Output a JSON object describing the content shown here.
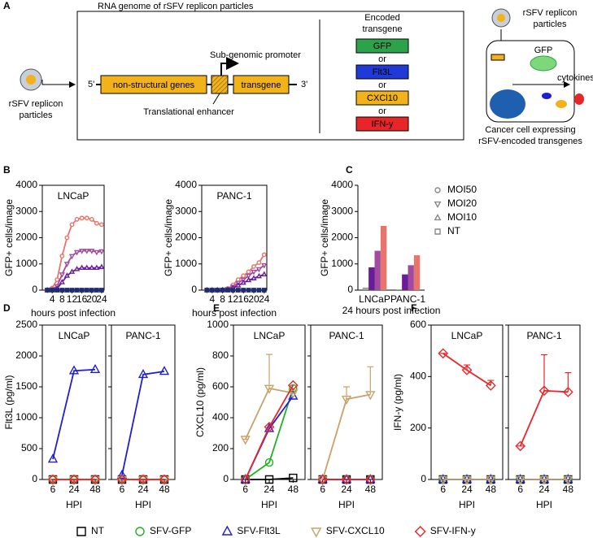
{
  "panel_labels": [
    "A",
    "B",
    "C",
    "D",
    "E",
    "F"
  ],
  "diagram": {
    "title": "RNA genome of rSFV replicon particles",
    "left_particles": [
      "rSFV replicon",
      "particles"
    ],
    "five_prime": "5'",
    "nonstructural": "non-structural genes",
    "promoter": "Sub-genomic promoter",
    "transgene": "transgene",
    "three_prime": "3'",
    "enhancer": "Translational enhancer",
    "encoded": [
      "Encoded",
      "transgene"
    ],
    "options": [
      {
        "label": "GFP",
        "color": "#2ca34a"
      },
      {
        "label": "Flt3L",
        "color": "#1f3ad6"
      },
      {
        "label": "CXCl10",
        "color": "#f2b21b"
      },
      {
        "label": "IFN-y",
        "color": "#e8262a"
      }
    ],
    "or": "or",
    "right_particles": [
      "rSFV replicon",
      "particles"
    ],
    "gfp": "GFP",
    "cytokines": "cytokines",
    "cell": [
      "Cancer cell expressing",
      "rSFV-encoded transgenes"
    ]
  },
  "shared_legend": [
    {
      "name": "NT",
      "color": "#000000",
      "marker": "square"
    },
    {
      "name": "SFV-GFP",
      "color": "#22b022",
      "marker": "circle"
    },
    {
      "name": "SFV-Flt3L",
      "color": "#1f1fd1",
      "marker": "triangle-up"
    },
    {
      "name": "SFV-CXCL10",
      "color": "#c8a26a",
      "marker": "triangle-down"
    },
    {
      "name": "SFV-IFN-y",
      "color": "#e8262a",
      "marker": "diamond"
    }
  ],
  "chart_data": [
    {
      "type": "line",
      "title": "LNCaP",
      "ylabel": "GFP+ cells/image",
      "xlabel": "hours post infection",
      "x": [
        2,
        4,
        6,
        8,
        10,
        12,
        14,
        16,
        18,
        20,
        22,
        24
      ],
      "xlim": [
        0,
        25
      ],
      "xticks": [
        4,
        8,
        12,
        16,
        20,
        24
      ],
      "ylim": [
        0,
        4000
      ],
      "yticks": [
        0,
        1000,
        2000,
        3000,
        4000
      ],
      "series": [
        {
          "color": "#e8746c",
          "marker": "circle",
          "values": [
            0,
            80,
            400,
            1300,
            2000,
            2500,
            2700,
            2750,
            2750,
            2700,
            2550,
            2500
          ]
        },
        {
          "color": "#a04b9e",
          "marker": "triangle-down",
          "values": [
            0,
            30,
            150,
            600,
            1000,
            1300,
            1450,
            1500,
            1500,
            1500,
            1450,
            1480
          ]
        },
        {
          "color": "#6a1b9a",
          "marker": "triangle-up",
          "values": [
            0,
            10,
            60,
            300,
            550,
            700,
            800,
            850,
            850,
            850,
            850,
            880
          ]
        },
        {
          "color": "#1f2d6e",
          "marker": "square",
          "values": [
            0,
            0,
            0,
            0,
            0,
            0,
            0,
            0,
            0,
            0,
            0,
            0
          ]
        }
      ]
    },
    {
      "type": "line",
      "title": "PANC-1",
      "ylabel": "GFP+ cells/image",
      "xlabel": "hours post infection",
      "x": [
        2,
        4,
        6,
        8,
        10,
        12,
        14,
        16,
        18,
        20,
        22,
        24
      ],
      "xlim": [
        0,
        25
      ],
      "xticks": [
        4,
        8,
        12,
        16,
        20,
        24
      ],
      "ylim": [
        0,
        4000
      ],
      "yticks": [
        0,
        1000,
        2000,
        3000,
        4000
      ],
      "series": [
        {
          "color": "#e8746c",
          "marker": "circle",
          "values": [
            0,
            0,
            0,
            20,
            60,
            200,
            400,
            550,
            700,
            900,
            1050,
            1350
          ]
        },
        {
          "color": "#a04b9e",
          "marker": "triangle-down",
          "values": [
            0,
            0,
            0,
            10,
            40,
            130,
            280,
            400,
            550,
            700,
            800,
            950
          ]
        },
        {
          "color": "#6a1b9a",
          "marker": "triangle-up",
          "values": [
            0,
            0,
            0,
            5,
            20,
            80,
            180,
            280,
            380,
            450,
            530,
            600
          ]
        },
        {
          "color": "#1f2d6e",
          "marker": "square",
          "values": [
            0,
            0,
            0,
            0,
            0,
            0,
            0,
            0,
            0,
            0,
            0,
            0
          ]
        }
      ]
    },
    {
      "type": "bar",
      "ylabel": "GFP+ cells/image",
      "xlabel": "24 hours post infection",
      "categories": [
        "LNCaP",
        "PANC-1"
      ],
      "ylim": [
        0,
        4000
      ],
      "yticks": [
        0,
        1000,
        2000,
        3000,
        4000
      ],
      "series": [
        {
          "name": "NT",
          "color": "#a0a0a0",
          "marker": "square",
          "values": [
            100,
            30
          ]
        },
        {
          "name": "MOI10",
          "color": "#6a1b9a",
          "marker": "triangle-up",
          "values": [
            870,
            600
          ]
        },
        {
          "name": "MOI20",
          "color": "#a04b9e",
          "marker": "triangle-down",
          "values": [
            1500,
            950
          ]
        },
        {
          "name": "MOI50",
          "color": "#e8746c",
          "marker": "circle",
          "values": [
            2450,
            1330
          ]
        }
      ]
    },
    {
      "type": "line-panels",
      "ylabel": "Flt3L (pg/ml)",
      "xlabel": "HPI",
      "categories": [
        "6",
        "24",
        "48"
      ],
      "ylim": [
        0,
        2500
      ],
      "yticks": [
        0,
        500,
        1000,
        1500,
        2000,
        2500
      ],
      "panels": [
        {
          "title": "LNCaP",
          "series": [
            {
              "values": [
                0,
                0,
                0
              ]
            },
            {
              "values": [
                0,
                0,
                0
              ]
            },
            {
              "values": [
                330,
                1760,
                1780
              ]
            },
            {
              "values": [
                0,
                0,
                0
              ]
            },
            {
              "values": [
                0,
                0,
                0
              ]
            }
          ]
        },
        {
          "title": "PANC-1",
          "series": [
            {
              "values": [
                0,
                0,
                0
              ]
            },
            {
              "values": [
                0,
                0,
                0
              ]
            },
            {
              "values": [
                70,
                1700,
                1750
              ]
            },
            {
              "values": [
                0,
                0,
                0
              ]
            },
            {
              "values": [
                0,
                0,
                0
              ]
            }
          ]
        }
      ]
    },
    {
      "type": "line-panels",
      "ylabel": "CXCL10 (pg/ml)",
      "xlabel": "HPI",
      "categories": [
        "6",
        "24",
        "48"
      ],
      "ylim": [
        0,
        1000
      ],
      "yticks": [
        0,
        200,
        400,
        600,
        800,
        1000
      ],
      "panels": [
        {
          "title": "LNCaP",
          "series": [
            {
              "values": [
                0,
                0,
                10
              ]
            },
            {
              "values": [
                0,
                110,
                590
              ]
            },
            {
              "values": [
                0,
                330,
                540
              ]
            },
            {
              "values": [
                260,
                590,
                560
              ],
              "errors": [
                0,
                220,
                0
              ]
            },
            {
              "values": [
                0,
                340,
                610
              ]
            }
          ]
        },
        {
          "title": "PANC-1",
          "series": [
            {
              "values": [
                0,
                0,
                0
              ]
            },
            {
              "values": [
                0,
                0,
                0
              ]
            },
            {
              "values": [
                0,
                0,
                0
              ]
            },
            {
              "values": [
                0,
                520,
                550
              ],
              "errors": [
                0,
                80,
                180
              ]
            },
            {
              "values": [
                0,
                0,
                0
              ]
            }
          ]
        }
      ]
    },
    {
      "type": "line-panels",
      "ylabel": "IFN-y (pg/ml)",
      "xlabel": "HPI",
      "categories": [
        "6",
        "24",
        "48"
      ],
      "ylim": [
        0,
        600
      ],
      "yticks": [
        0,
        200,
        400,
        600
      ],
      "panels": [
        {
          "title": "LNCaP",
          "series": [
            {
              "values": [
                0,
                0,
                0
              ]
            },
            {
              "values": [
                0,
                0,
                0
              ]
            },
            {
              "values": [
                0,
                0,
                0
              ]
            },
            {
              "values": [
                0,
                0,
                0
              ]
            },
            {
              "values": [
                490,
                425,
                365
              ],
              "errors": [
                0,
                20,
                20
              ]
            }
          ]
        },
        {
          "title": "PANC-1",
          "series": [
            {
              "values": [
                0,
                0,
                0
              ]
            },
            {
              "values": [
                0,
                0,
                0
              ]
            },
            {
              "values": [
                0,
                0,
                0
              ]
            },
            {
              "values": [
                0,
                0,
                0
              ]
            },
            {
              "values": [
                130,
                345,
                340
              ],
              "errors": [
                0,
                140,
                75
              ]
            }
          ]
        }
      ]
    }
  ]
}
